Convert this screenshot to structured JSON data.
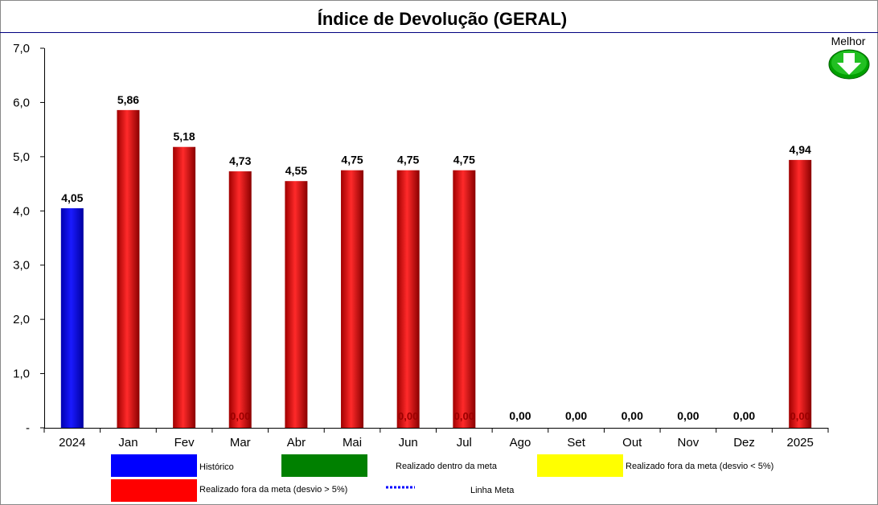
{
  "chart_data": {
    "type": "bar",
    "title": "Índice de Devolução (GERAL)",
    "categories": [
      "2024",
      "Jan",
      "Fev",
      "Mar",
      "Abr",
      "Mai",
      "Jun",
      "Jul",
      "Ago",
      "Set",
      "Out",
      "Nov",
      "Dez",
      "2025"
    ],
    "values": [
      4.05,
      5.86,
      5.18,
      4.73,
      4.55,
      4.75,
      4.75,
      4.75,
      0.0,
      0.0,
      0.0,
      0.0,
      0.0,
      4.94
    ],
    "data_labels": [
      "4,05",
      "5,86",
      "5,18",
      "4,73",
      "4,55",
      "4,75",
      "4,75",
      "4,75",
      "0,00",
      "0,00",
      "0,00",
      "0,00",
      "0,00",
      "4,94"
    ],
    "zero_labels": [
      "",
      "",
      "",
      "0,00",
      "",
      "",
      "0,00",
      "0,00",
      "",
      "",
      "",
      "",
      "",
      "0,00"
    ],
    "bar_status": [
      "historico",
      "fora5",
      "fora5",
      "fora5",
      "fora5",
      "fora5",
      "fora5",
      "fora5",
      "none",
      "none",
      "none",
      "none",
      "none",
      "fora5"
    ],
    "ylim": [
      0,
      7
    ],
    "yticks": [
      0,
      1,
      2,
      3,
      4,
      5,
      6,
      7
    ],
    "ytick_labels": [
      "-",
      "1,0",
      "2,0",
      "3,0",
      "4,0",
      "5,0",
      "6,0",
      "7,0"
    ],
    "xlabel": "",
    "ylabel": "",
    "grid": false,
    "direction_indicator": {
      "label": "Melhor",
      "icon": "arrow-down-icon",
      "color": "#00a000"
    },
    "colors": {
      "historico": "#0000ff",
      "dentro": "#008000",
      "fora5menos": "#ffff00",
      "fora5": "#ff0000",
      "meta": "#0000ff"
    },
    "legend": [
      {
        "key": "historico",
        "label": "Histórico"
      },
      {
        "key": "dentro",
        "label": "Realizado dentro da meta"
      },
      {
        "key": "fora5menos",
        "label": "Realizado fora da meta (desvio < 5%)"
      },
      {
        "key": "fora5",
        "label": "Realizado fora da meta (desvio > 5%)"
      },
      {
        "key": "meta",
        "label": "Linha Meta"
      }
    ]
  }
}
